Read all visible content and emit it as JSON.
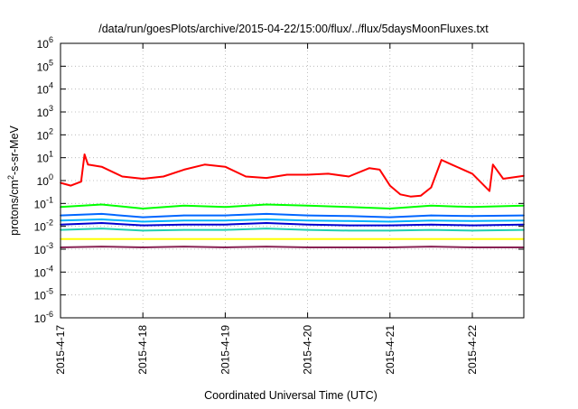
{
  "chart_data": {
    "type": "line",
    "title": "/data/run/goesPlots/archive/2015-04-22/15:00/flux/../flux/5daysMoonFluxes.txt",
    "xlabel": "Coordinated Universal Time (UTC)",
    "ylabel": {
      "pre": "protons/cm",
      "sup": "2",
      "post": "-s-sr-MeV"
    },
    "y_scale": "log",
    "ylim": [
      1e-06,
      1000000.0
    ],
    "y_ticks": [
      {
        "value": 1e-06,
        "base": "10",
        "exp": "-6"
      },
      {
        "value": 1e-05,
        "base": "10",
        "exp": "-5"
      },
      {
        "value": 0.0001,
        "base": "10",
        "exp": "-4"
      },
      {
        "value": 0.001,
        "base": "10",
        "exp": "-3"
      },
      {
        "value": 0.01,
        "base": "10",
        "exp": "-2"
      },
      {
        "value": 0.1,
        "base": "10",
        "exp": "-1"
      },
      {
        "value": 1,
        "base": "10",
        "exp": "0"
      },
      {
        "value": 10,
        "base": "10",
        "exp": "1"
      },
      {
        "value": 100,
        "base": "10",
        "exp": "2"
      },
      {
        "value": 1000,
        "base": "10",
        "exp": "3"
      },
      {
        "value": 10000,
        "base": "10",
        "exp": "4"
      },
      {
        "value": 100000,
        "base": "10",
        "exp": "5"
      },
      {
        "value": 1000000,
        "base": "10",
        "exp": "6"
      }
    ],
    "xlim": [
      "2015-04-17",
      "2015-04-22 15:00"
    ],
    "x_ticks": [
      "2015-4-17",
      "2015-4-18",
      "2015-4-19",
      "2015-4-20",
      "2015-4-21",
      "2015-4-22"
    ],
    "grid": true,
    "series_colors": [
      "#ff0000",
      "#00ff00",
      "#0066ff",
      "#00b0ff",
      "#0000d0",
      "#20d0b0",
      "#ffff00",
      "#882255"
    ],
    "series": [
      {
        "color": "#ff0000",
        "x": [
          "2015-04-17 00:00",
          "2015-04-17 03:00",
          "2015-04-17 06:00",
          "2015-04-17 07:00",
          "2015-04-17 08:00",
          "2015-04-17 12:00",
          "2015-04-17 18:00",
          "2015-04-18 00:00",
          "2015-04-18 06:00",
          "2015-04-18 12:00",
          "2015-04-18 18:00",
          "2015-04-19 00:00",
          "2015-04-19 06:00",
          "2015-04-19 12:00",
          "2015-04-19 18:00",
          "2015-04-20 00:00",
          "2015-04-20 06:00",
          "2015-04-20 12:00",
          "2015-04-20 18:00",
          "2015-04-20 21:00",
          "2015-04-21 00:00",
          "2015-04-21 03:00",
          "2015-04-21 06:00",
          "2015-04-21 09:00",
          "2015-04-21 12:00",
          "2015-04-21 15:00",
          "2015-04-21 18:00",
          "2015-04-22 00:00",
          "2015-04-22 05:00",
          "2015-04-22 06:00",
          "2015-04-22 09:00",
          "2015-04-22 15:00"
        ],
        "y": [
          0.8,
          0.6,
          0.9,
          14,
          5,
          4,
          1.5,
          1.2,
          1.5,
          3,
          5,
          4,
          1.5,
          1.3,
          1.8,
          1.8,
          2,
          1.5,
          3.5,
          3,
          0.6,
          0.25,
          0.2,
          0.22,
          0.5,
          8,
          5,
          2,
          0.35,
          5,
          1.2,
          1.6
        ]
      },
      {
        "color": "#00ff00",
        "x": [
          "2015-04-17 00:00",
          "2015-04-17 12:00",
          "2015-04-18 00:00",
          "2015-04-18 12:00",
          "2015-04-19 00:00",
          "2015-04-19 12:00",
          "2015-04-20 00:00",
          "2015-04-20 12:00",
          "2015-04-21 00:00",
          "2015-04-21 12:00",
          "2015-04-22 00:00",
          "2015-04-22 15:00"
        ],
        "y": [
          0.07,
          0.09,
          0.06,
          0.08,
          0.07,
          0.09,
          0.08,
          0.07,
          0.06,
          0.08,
          0.07,
          0.08
        ]
      },
      {
        "color": "#0066ff",
        "x": [
          "2015-04-17 00:00",
          "2015-04-17 12:00",
          "2015-04-18 00:00",
          "2015-04-18 12:00",
          "2015-04-19 00:00",
          "2015-04-19 12:00",
          "2015-04-20 00:00",
          "2015-04-20 12:00",
          "2015-04-21 00:00",
          "2015-04-21 12:00",
          "2015-04-22 00:00",
          "2015-04-22 15:00"
        ],
        "y": [
          0.03,
          0.035,
          0.025,
          0.03,
          0.03,
          0.035,
          0.03,
          0.028,
          0.025,
          0.03,
          0.028,
          0.03
        ]
      },
      {
        "color": "#00b0ff",
        "x": [
          "2015-04-17 00:00",
          "2015-04-17 12:00",
          "2015-04-18 00:00",
          "2015-04-18 12:00",
          "2015-04-19 00:00",
          "2015-04-19 12:00",
          "2015-04-20 00:00",
          "2015-04-20 12:00",
          "2015-04-21 00:00",
          "2015-04-21 12:00",
          "2015-04-22 00:00",
          "2015-04-22 15:00"
        ],
        "y": [
          0.018,
          0.02,
          0.016,
          0.018,
          0.018,
          0.02,
          0.018,
          0.017,
          0.016,
          0.018,
          0.017,
          0.018
        ]
      },
      {
        "color": "#0000d0",
        "x": [
          "2015-04-17 00:00",
          "2015-04-17 12:00",
          "2015-04-18 00:00",
          "2015-04-18 12:00",
          "2015-04-19 00:00",
          "2015-04-19 12:00",
          "2015-04-20 00:00",
          "2015-04-20 12:00",
          "2015-04-21 00:00",
          "2015-04-21 12:00",
          "2015-04-22 00:00",
          "2015-04-22 15:00"
        ],
        "y": [
          0.012,
          0.014,
          0.011,
          0.012,
          0.012,
          0.014,
          0.012,
          0.011,
          0.011,
          0.012,
          0.011,
          0.012
        ]
      },
      {
        "color": "#20d0b0",
        "x": [
          "2015-04-17 00:00",
          "2015-04-17 12:00",
          "2015-04-18 00:00",
          "2015-04-18 12:00",
          "2015-04-19 00:00",
          "2015-04-19 12:00",
          "2015-04-20 00:00",
          "2015-04-20 12:00",
          "2015-04-21 00:00",
          "2015-04-21 12:00",
          "2015-04-22 00:00",
          "2015-04-22 15:00"
        ],
        "y": [
          0.007,
          0.008,
          0.0065,
          0.007,
          0.007,
          0.008,
          0.007,
          0.0065,
          0.0065,
          0.007,
          0.0065,
          0.007
        ]
      },
      {
        "color": "#ffff00",
        "x": [
          "2015-04-17 00:00",
          "2015-04-17 12:00",
          "2015-04-18 00:00",
          "2015-04-18 12:00",
          "2015-04-19 00:00",
          "2015-04-19 12:00",
          "2015-04-20 00:00",
          "2015-04-20 12:00",
          "2015-04-21 00:00",
          "2015-04-21 12:00",
          "2015-04-22 00:00",
          "2015-04-22 15:00"
        ],
        "y": [
          0.0028,
          0.0028,
          0.0028,
          0.0028,
          0.0028,
          0.0028,
          0.0028,
          0.0028,
          0.0028,
          0.0028,
          0.0028,
          0.0028
        ]
      },
      {
        "color": "#882255",
        "x": [
          "2015-04-17 00:00",
          "2015-04-17 12:00",
          "2015-04-18 00:00",
          "2015-04-18 12:00",
          "2015-04-19 00:00",
          "2015-04-19 12:00",
          "2015-04-20 00:00",
          "2015-04-20 12:00",
          "2015-04-21 00:00",
          "2015-04-21 12:00",
          "2015-04-22 00:00",
          "2015-04-22 15:00"
        ],
        "y": [
          0.0012,
          0.0013,
          0.0012,
          0.0013,
          0.0012,
          0.0013,
          0.0012,
          0.0012,
          0.0012,
          0.0013,
          0.0012,
          0.0012
        ]
      }
    ]
  }
}
